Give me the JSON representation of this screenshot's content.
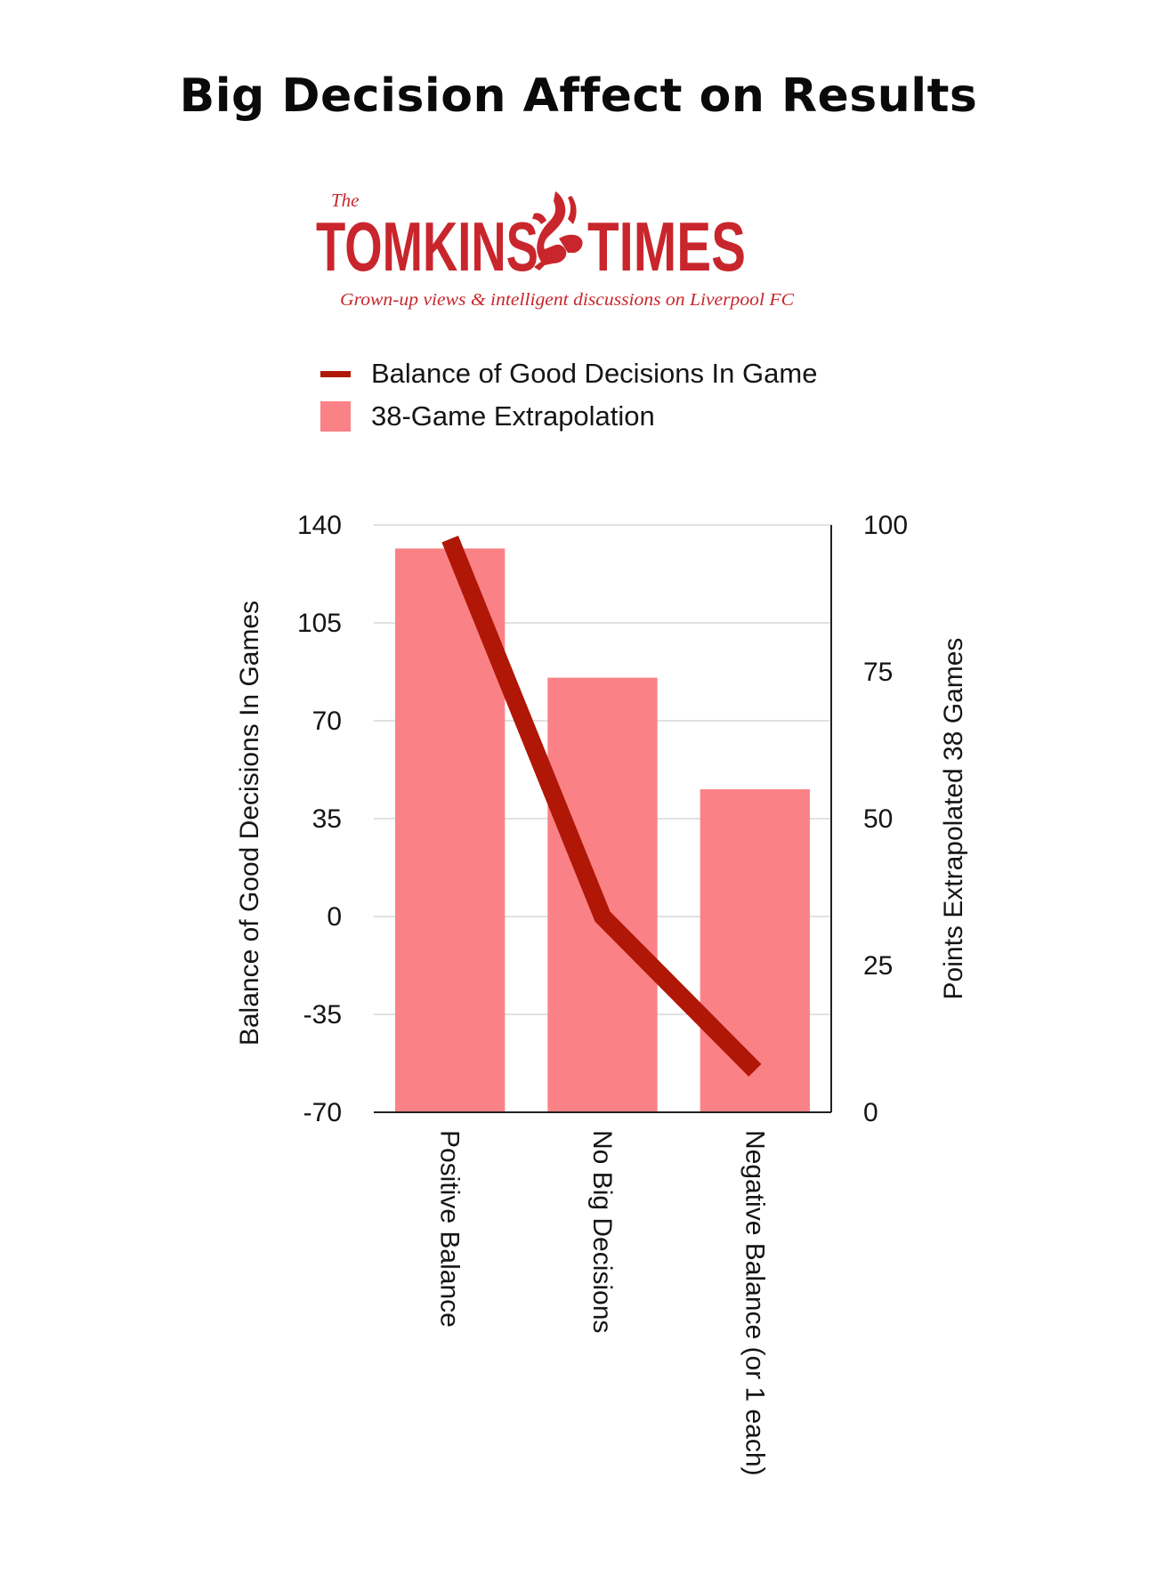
{
  "logo": {
    "the": "The",
    "left_word": "TOMKINS",
    "right_word": "TIMES",
    "tagline": "Grown-up views & intelligent discussions on Liverpool FC",
    "icon": "liver-bird-icon",
    "color": "#c8262c"
  },
  "colors": {
    "line": "#b01707",
    "bar": "#fa8286",
    "grid": "#cfcfcf",
    "axis": "#222222"
  },
  "chart_data": {
    "type": "bar",
    "title": "Big Decision Affect on Results",
    "categories": [
      "Positive Balance",
      "No Big Decisions",
      "Negative Balance (or 1 each)"
    ],
    "series": [
      {
        "name": "Balance of Good Decisions In Game",
        "type": "line",
        "axis": "left",
        "values": [
          135,
          0,
          -55
        ]
      },
      {
        "name": "38-Game Extrapolation",
        "type": "bar",
        "axis": "right",
        "values": [
          96,
          74,
          55
        ]
      }
    ],
    "y_left": {
      "label": "Balance of Good Decisions In Games",
      "ylim": [
        -70,
        140
      ],
      "ticks": [
        140,
        105,
        70,
        35,
        0,
        -35,
        -70
      ]
    },
    "y_right": {
      "label": "Points Extrapolated 38 Games",
      "ylim": [
        0,
        100
      ],
      "ticks": [
        100,
        75,
        50,
        25,
        0
      ]
    },
    "grid": true,
    "legend_position": "top"
  }
}
